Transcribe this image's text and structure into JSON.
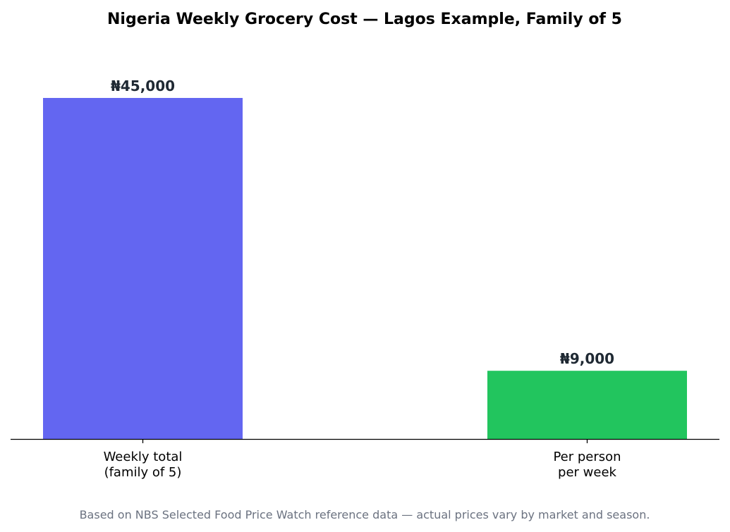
{
  "chart_data": {
    "type": "bar",
    "title": "Nigeria Weekly Grocery Cost — Lagos Example, Family of 5",
    "categories": [
      [
        "Weekly total",
        "(family of 5)"
      ],
      [
        "Per person",
        "per week"
      ]
    ],
    "values": [
      45000,
      9000
    ],
    "value_labels": [
      "₦45,000",
      "₦9,000"
    ],
    "colors": [
      "#6366f1",
      "#22c55e"
    ],
    "xlabel": "",
    "ylabel": "",
    "ylim": [
      0,
      45000
    ],
    "grid": false,
    "footnote": "Based on NBS Selected Food Price Watch reference data — actual prices vary by market and season."
  }
}
